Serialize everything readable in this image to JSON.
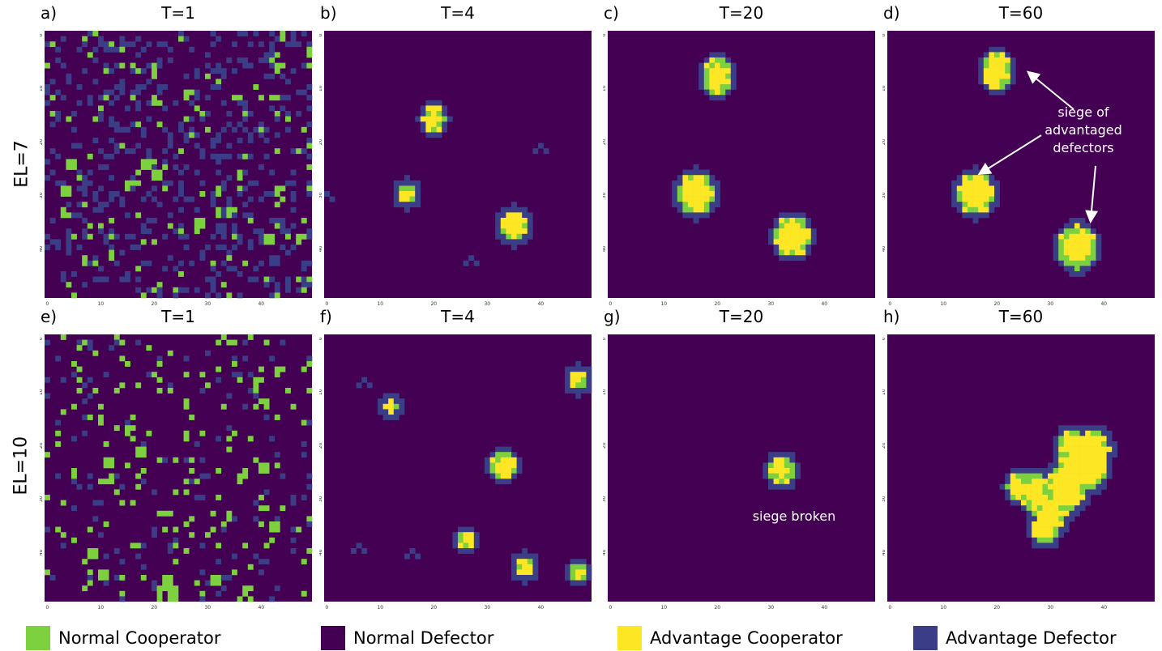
{
  "row_labels": [
    "EL=7",
    "EL=10"
  ],
  "legend": [
    {
      "label": "Normal Cooperator",
      "color": "#7ed13e"
    },
    {
      "label": "Normal Defector",
      "color": "#440154"
    },
    {
      "label": "Advantage Cooperator",
      "color": "#fde725"
    },
    {
      "label": "Advantage Defector",
      "color": "#3b3e87"
    }
  ],
  "annotations": {
    "siege_of_advantaged": "siege of\nadvantaged\ndefectors",
    "siege_broken": "siege broken"
  },
  "chart_data": [
    {
      "panel": "a)",
      "title": "T=1",
      "type": "heatmap",
      "grid_size": 50,
      "xticks": [
        "0",
        "10",
        "20",
        "30",
        "40"
      ],
      "yticks": [
        "0",
        "10",
        "20",
        "30",
        "40"
      ],
      "pattern": "random_el7"
    },
    {
      "panel": "b)",
      "title": "T=4",
      "type": "heatmap",
      "grid_size": 50,
      "xticks": [
        "0",
        "10",
        "20",
        "30",
        "40"
      ],
      "yticks": [
        "0",
        "10",
        "20",
        "30",
        "40"
      ],
      "clusters": [
        {
          "x": 20,
          "y": 16,
          "r": 2.2
        },
        {
          "x": 15,
          "y": 30,
          "r": 1.8
        },
        {
          "x": 35,
          "y": 36,
          "r": 2.6
        }
      ],
      "specks": [
        [
          0,
          30
        ],
        [
          40,
          21
        ],
        [
          27,
          42
        ]
      ]
    },
    {
      "panel": "c)",
      "title": "T=20",
      "type": "heatmap",
      "grid_size": 50,
      "xticks": [
        "0",
        "10",
        "20",
        "30",
        "40"
      ],
      "yticks": [
        "0",
        "10",
        "20",
        "30",
        "40"
      ],
      "clusters": [
        {
          "x": 20,
          "y": 8,
          "r": 3
        },
        {
          "x": 16,
          "y": 30,
          "r": 3.5
        },
        {
          "x": 34,
          "y": 38,
          "r": 3.4
        }
      ]
    },
    {
      "panel": "d)",
      "title": "T=60",
      "type": "heatmap",
      "grid_size": 50,
      "xticks": [
        "0",
        "10",
        "20",
        "30",
        "40"
      ],
      "yticks": [
        "0",
        "10",
        "20",
        "30",
        "40"
      ],
      "clusters": [
        {
          "x": 20,
          "y": 7,
          "r": 3
        },
        {
          "x": 16,
          "y": 30,
          "r": 3.5
        },
        {
          "x": 35,
          "y": 40,
          "r": 3.6
        }
      ]
    },
    {
      "panel": "e)",
      "title": "T=1",
      "type": "heatmap",
      "grid_size": 50,
      "xticks": [
        "0",
        "10",
        "20",
        "30",
        "40"
      ],
      "yticks": [
        "0",
        "10",
        "20",
        "30",
        "40"
      ],
      "pattern": "random_el10"
    },
    {
      "panel": "f)",
      "title": "T=4",
      "type": "heatmap",
      "grid_size": 50,
      "xticks": [
        "0",
        "10",
        "20",
        "30",
        "40"
      ],
      "yticks": [
        "0",
        "10",
        "20",
        "30",
        "40"
      ],
      "clusters": [
        {
          "x": 33,
          "y": 24,
          "r": 2.3
        },
        {
          "x": 26,
          "y": 38,
          "r": 1.6
        },
        {
          "x": 37,
          "y": 43,
          "r": 1.8
        },
        {
          "x": 12,
          "y": 13,
          "r": 1.4
        },
        {
          "x": 47,
          "y": 8,
          "r": 1.8
        },
        {
          "x": 47,
          "y": 44,
          "r": 1.6
        }
      ],
      "specks": [
        [
          7,
          8
        ],
        [
          6,
          39
        ],
        [
          16,
          40
        ]
      ]
    },
    {
      "panel": "g)",
      "title": "T=20",
      "type": "heatmap",
      "grid_size": 50,
      "xticks": [
        "0",
        "10",
        "20",
        "30",
        "40"
      ],
      "yticks": [
        "0",
        "10",
        "20",
        "30",
        "40"
      ],
      "clusters": [
        {
          "x": 32,
          "y": 25,
          "r": 2.4
        }
      ]
    },
    {
      "panel": "h)",
      "title": "T=60",
      "type": "heatmap",
      "grid_size": 50,
      "xticks": [
        "0",
        "10",
        "20",
        "30",
        "40"
      ],
      "yticks": [
        "0",
        "10",
        "20",
        "30",
        "40"
      ],
      "pattern": "large_blob"
    }
  ]
}
